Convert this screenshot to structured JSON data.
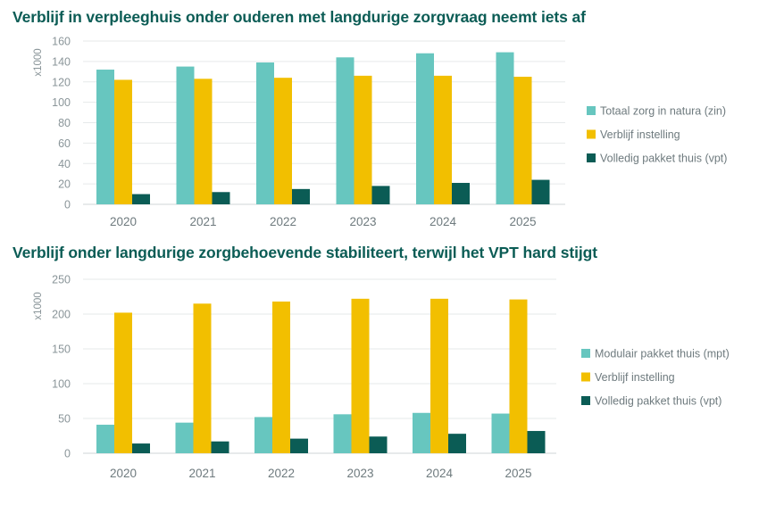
{
  "colors": {
    "title": "#0b5c55",
    "teal": "#67c6bf",
    "yellow": "#f2bf00",
    "dark": "#0b5c55",
    "grid": "#e6e9ea",
    "text": "#8a9599"
  },
  "chart_data": [
    {
      "type": "bar",
      "title": "Verblijf in verpleeghuis onder ouderen met langdurige zorgvraag neemt iets af",
      "ylabel": "x1000",
      "xlabel": "",
      "ylim": [
        0,
        160
      ],
      "yticks": [
        0,
        20,
        40,
        60,
        80,
        100,
        120,
        140,
        160
      ],
      "grid": true,
      "legend_position": "right",
      "categories": [
        "2020",
        "2021",
        "2022",
        "2023",
        "2024",
        "2025"
      ],
      "series": [
        {
          "name": "Totaal zorg in natura (zin)",
          "color": "#67c6bf",
          "values": [
            132,
            135,
            139,
            144,
            148,
            149
          ]
        },
        {
          "name": "Verblijf instelling",
          "color": "#f2bf00",
          "values": [
            122,
            123,
            124,
            126,
            126,
            125
          ]
        },
        {
          "name": "Volledig pakket thuis (vpt)",
          "color": "#0b5c55",
          "values": [
            10,
            12,
            15,
            18,
            21,
            24
          ]
        }
      ]
    },
    {
      "type": "bar",
      "title": "Verblijf onder langdurige zorgbehoevende stabiliteert, terwijl het VPT hard stijgt",
      "ylabel": "x1000",
      "xlabel": "",
      "ylim": [
        0,
        250
      ],
      "yticks": [
        0,
        50,
        100,
        150,
        200,
        250
      ],
      "grid": true,
      "legend_position": "right",
      "categories": [
        "2020",
        "2021",
        "2022",
        "2023",
        "2024",
        "2025"
      ],
      "series": [
        {
          "name": "Modulair pakket thuis (mpt)",
          "color": "#67c6bf",
          "values": [
            41,
            44,
            52,
            56,
            58,
            57
          ]
        },
        {
          "name": "Verblijf instelling",
          "color": "#f2bf00",
          "values": [
            202,
            215,
            218,
            222,
            222,
            221
          ]
        },
        {
          "name": "Volledig pakket thuis (vpt)",
          "color": "#0b5c55",
          "values": [
            14,
            17,
            21,
            24,
            28,
            32
          ]
        }
      ]
    }
  ]
}
